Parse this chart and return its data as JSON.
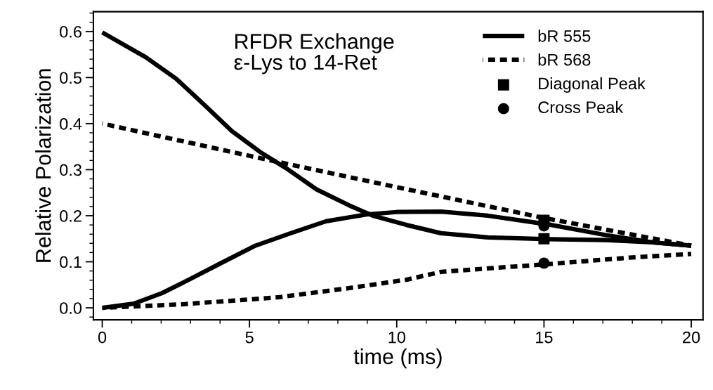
{
  "chart_data": {
    "type": "line",
    "xlabel": "time (ms)",
    "ylabel": "Relative Polarization",
    "annotations": [
      "RFDR Exchange\nε-Lys to 14-Ret"
    ],
    "xlim": [
      -0.3,
      20.4
    ],
    "ylim": [
      -0.026,
      0.643
    ],
    "xticks": [
      0,
      5,
      10,
      15,
      20
    ],
    "yticks": [
      {
        "value": 0,
        "label": "0.0"
      },
      {
        "value": 0.1,
        "label": "0.1"
      },
      {
        "value": 0.2,
        "label": "0.2"
      },
      {
        "value": 0.3,
        "label": "0.3"
      },
      {
        "value": 0.4,
        "label": "0.4"
      },
      {
        "value": 0.5,
        "label": "0.5"
      },
      {
        "value": 0.6,
        "label": "0.6"
      }
    ],
    "grid": false,
    "legend": "top right",
    "marker": "none",
    "series": [
      {
        "name": "bR 555",
        "color": "#000000",
        "line_style": "solid",
        "x": [
          0,
          1.48,
          2.5,
          3.46,
          4.4,
          5.37,
          6.25,
          7.28,
          8.4,
          9.19,
          10.33,
          11.5,
          13.1,
          15.15,
          17.1,
          18.7,
          20
        ],
        "values": [
          0.598,
          0.544,
          0.498,
          0.441,
          0.384,
          0.338,
          0.303,
          0.257,
          0.222,
          0.2,
          0.18,
          0.162,
          0.153,
          0.149,
          0.147,
          0.142,
          0.135
        ]
      },
      {
        "color": "#000000",
        "line_style": "solid",
        "x": [
          0,
          1.07,
          2.03,
          3,
          4,
          5.2,
          6.4,
          7.6,
          9.0,
          10,
          11.5,
          13.1,
          15.15,
          17.1,
          18.7,
          20
        ],
        "values": [
          0,
          0.009,
          0.032,
          0.063,
          0.096,
          0.135,
          0.162,
          0.188,
          0.203,
          0.208,
          0.209,
          0.2,
          0.181,
          0.158,
          0.142,
          0.135
        ]
      },
      {
        "name": "bR 568",
        "color": "#000000",
        "line_style": "dashed",
        "x": [
          0,
          5,
          10,
          15,
          20
        ],
        "values": [
          0.4,
          0.33,
          0.262,
          0.195,
          0.135
        ]
      },
      {
        "color": "#000000",
        "line_style": "dashed",
        "x": [
          0,
          2.8,
          6.0,
          8.4,
          10.33,
          11.5,
          15.15,
          17.9,
          20
        ],
        "values": [
          0,
          0.008,
          0.023,
          0.043,
          0.061,
          0.078,
          0.095,
          0.109,
          0.117
        ]
      },
      {
        "name": "Diagonal Peak",
        "type": "scatter",
        "marker": "square",
        "color": "#000000",
        "x": [
          15,
          15
        ],
        "values": [
          0.15,
          0.19
        ]
      },
      {
        "name": "Cross Peak",
        "type": "scatter",
        "marker": "circle",
        "color": "#000000",
        "x": [
          15,
          15
        ],
        "values": [
          0.178,
          0.097
        ]
      }
    ]
  }
}
